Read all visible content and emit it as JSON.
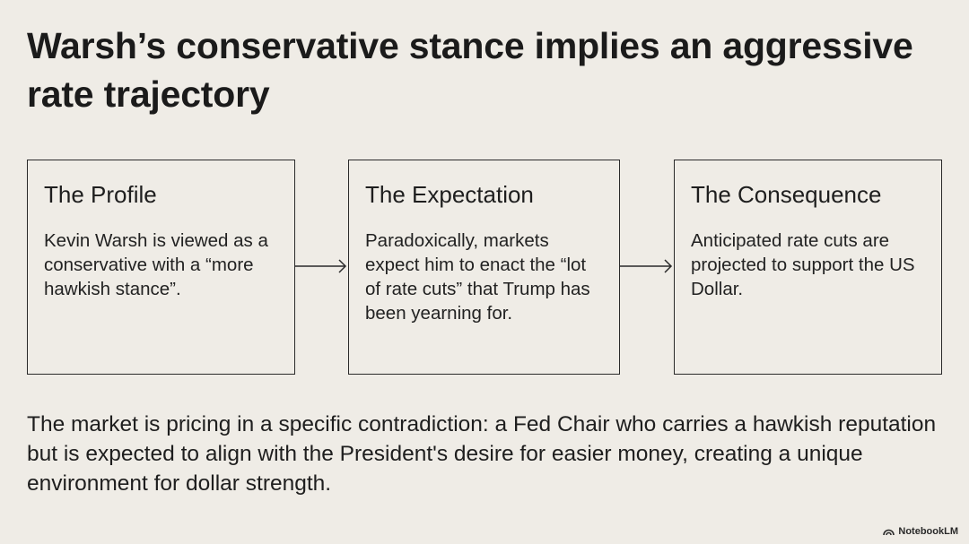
{
  "title": "Warsh’s conservative stance implies an aggressive rate trajectory",
  "steps": [
    {
      "heading": "The Profile",
      "body": "Kevin Warsh is viewed as a conservative with a “more hawkish stance”."
    },
    {
      "heading": "The Expectation",
      "body": "Paradoxically, markets expect him to enact the “lot of rate cuts” that Trump has been yearning for."
    },
    {
      "heading": "The Consequence",
      "body": "Anticipated rate cuts are projected to support the US Dollar."
    }
  ],
  "summary": "The market is pricing in a specific contradiction: a Fed Chair who carries a hawkish reputation but is expected to align with the President's desire for easier money, creating a unique environment for dollar strength.",
  "brand": {
    "label": "NotebookLM",
    "icon": "notebooklm-logo-icon"
  },
  "colors": {
    "background": "#EFECE6",
    "text": "#1E1E1E",
    "border": "#2A2A2A"
  }
}
